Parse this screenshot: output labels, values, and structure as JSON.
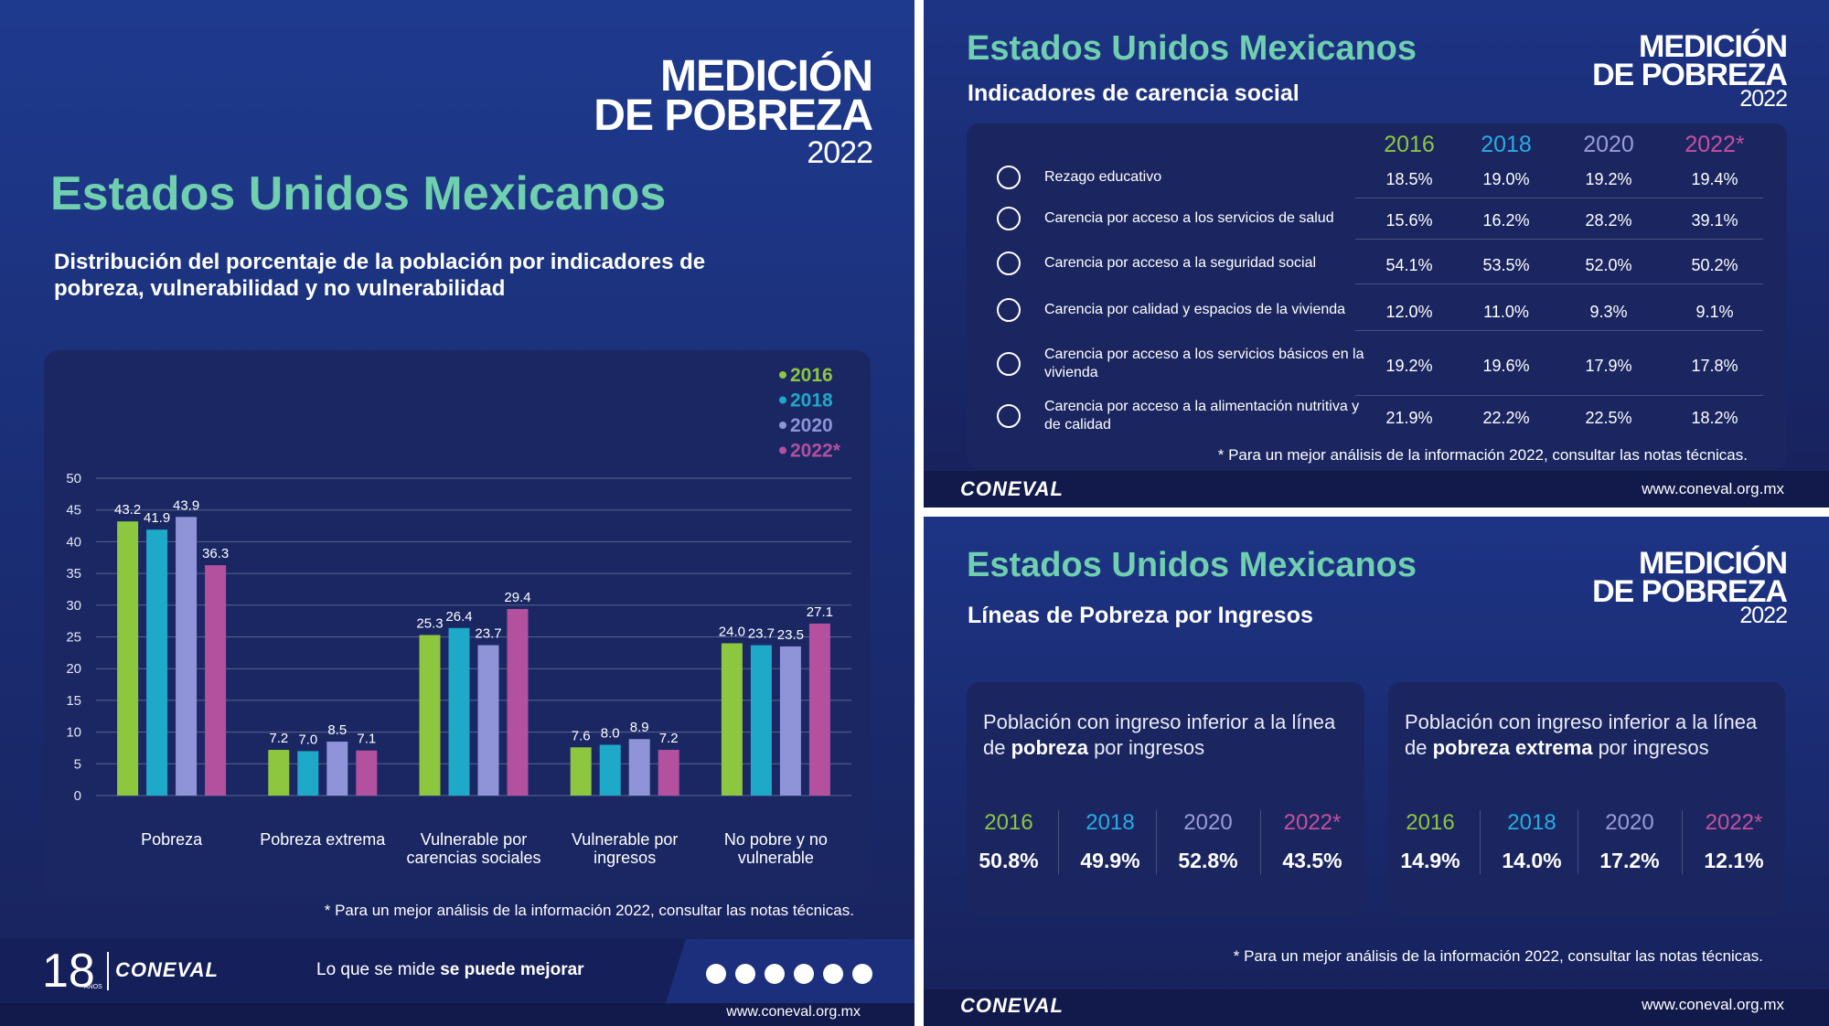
{
  "logo": {
    "line1": "MEDICIÓN",
    "line2": "DE POBREZA",
    "year": "2022"
  },
  "left": {
    "title": "Estados Unidos Mexicanos",
    "subtitle": "Distribución del porcentaje de la población por indicadores de pobreza, vulnerabilidad y no vulnerabilidad",
    "note": "* Para un mejor análisis de la información 2022, consultar las notas técnicas.",
    "footer": {
      "anniversary": "18",
      "anniversary_sub": "AÑOS",
      "brand": "CONEVAL",
      "slogan_plain": "Lo que se mide",
      "slogan_bold": "se puede mejorar",
      "url": "www.coneval.org.mx"
    }
  },
  "chart_data": {
    "type": "bar",
    "categories": [
      "Pobreza",
      "Pobreza extrema",
      "Vulnerable por carencias sociales",
      "Vulnerable por ingresos",
      "No pobre y no vulnerable"
    ],
    "series": [
      {
        "name": "2016",
        "color": "#8dc63f",
        "values": [
          43.2,
          7.2,
          25.3,
          7.6,
          24.0
        ],
        "value_labels": [
          "43.2",
          "7.2",
          "25.3",
          "7.6",
          "24.0"
        ]
      },
      {
        "name": "2018",
        "color": "#1fa9c9",
        "values": [
          41.9,
          7.0,
          26.4,
          8.0,
          23.7
        ],
        "value_labels": [
          "41.9",
          "7.0",
          "26.4",
          "8.0",
          "23.7"
        ]
      },
      {
        "name": "2020",
        "color": "#8f93d8",
        "values": [
          43.9,
          8.5,
          23.7,
          8.9,
          23.5
        ],
        "value_labels": [
          "43.9",
          "8.5",
          "23.7",
          "8.9",
          "23.5"
        ]
      },
      {
        "name": "2022*",
        "color": "#b3519e",
        "values": [
          36.3,
          7.1,
          29.4,
          7.2,
          27.1
        ],
        "value_labels": [
          "36.3",
          "7.1",
          "29.4",
          "7.2",
          "27.1"
        ]
      }
    ],
    "ylim": [
      0,
      50
    ],
    "yticks": [
      0,
      5,
      10,
      15,
      20,
      25,
      30,
      35,
      40,
      45,
      50
    ],
    "grid": true,
    "legend": "top-right"
  },
  "carencias": {
    "title": "Estados Unidos Mexicanos",
    "subtitle": "Indicadores de carencia social",
    "years": [
      "2016",
      "2018",
      "2020",
      "2022*"
    ],
    "rows": [
      {
        "label": "Rezago educativo",
        "values": [
          "18.5%",
          "19.0%",
          "19.2%",
          "19.4%"
        ]
      },
      {
        "label": "Carencia por acceso a los servicios de salud",
        "values": [
          "15.6%",
          "16.2%",
          "28.2%",
          "39.1%"
        ]
      },
      {
        "label": "Carencia por acceso a la seguridad social",
        "values": [
          "54.1%",
          "53.5%",
          "52.0%",
          "50.2%"
        ]
      },
      {
        "label": "Carencia por calidad y espacios de la vivienda",
        "values": [
          "12.0%",
          "11.0%",
          "9.3%",
          "9.1%"
        ]
      },
      {
        "label": "Carencia por acceso a los servicios básicos en la vivienda",
        "values": [
          "19.2%",
          "19.6%",
          "17.9%",
          "17.8%"
        ]
      },
      {
        "label": "Carencia por acceso a la alimentación nutritiva y de calidad",
        "values": [
          "21.9%",
          "22.2%",
          "22.5%",
          "18.2%"
        ]
      }
    ],
    "note": "* Para un mejor análisis de la información 2022, consultar las notas técnicas.",
    "brand": "CONEVAL",
    "url": "www.coneval.org.mx"
  },
  "lineas": {
    "title": "Estados Unidos Mexicanos",
    "subtitle": "Líneas de Pobreza por Ingresos",
    "cards": [
      {
        "text": [
          "Población con ingreso inferior a la línea de ",
          "pobreza",
          " por ingresos"
        ],
        "years": [
          "2016",
          "2018",
          "2020",
          "2022*"
        ],
        "values": [
          "50.8%",
          "49.9%",
          "52.8%",
          "43.5%"
        ]
      },
      {
        "text": [
          "Población con ingreso inferior a la línea de ",
          "pobreza extrema",
          " por ingresos"
        ],
        "years": [
          "2016",
          "2018",
          "2020",
          "2022*"
        ],
        "values": [
          "14.9%",
          "14.0%",
          "17.2%",
          "12.1%"
        ]
      }
    ],
    "note": "* Para un mejor análisis de la información 2022, consultar las notas técnicas.",
    "brand": "CONEVAL",
    "url": "www.coneval.org.mx"
  }
}
